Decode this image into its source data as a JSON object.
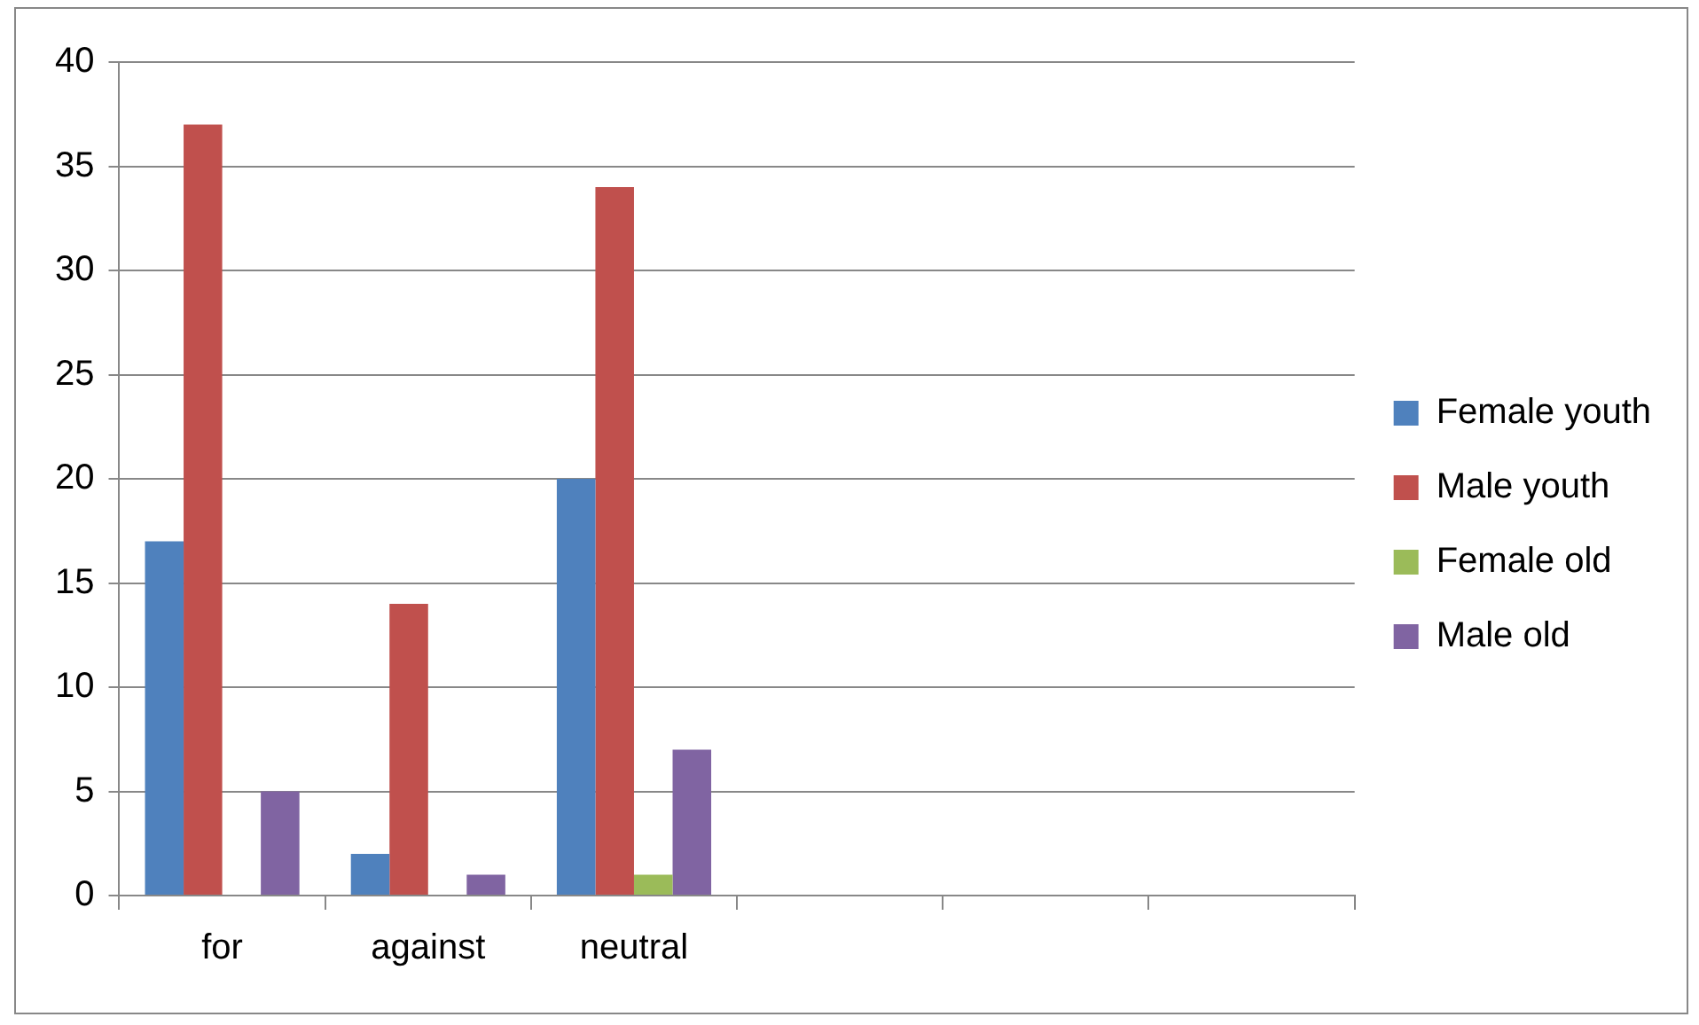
{
  "chart_data": {
    "type": "bar",
    "categories": [
      "for",
      "against",
      "neutral",
      null,
      null,
      null
    ],
    "series": [
      {
        "name": "Female youth",
        "color": "#4f81bd",
        "values": [
          17,
          2,
          20,
          null,
          null,
          null
        ]
      },
      {
        "name": "Male youth",
        "color": "#c0504d",
        "values": [
          37,
          14,
          34,
          null,
          null,
          null
        ]
      },
      {
        "name": "Female old",
        "color": "#9bbb59",
        "values": [
          0,
          0,
          1,
          null,
          null,
          null
        ]
      },
      {
        "name": "Male old",
        "color": "#8064a2",
        "values": [
          5,
          1,
          7,
          null,
          null,
          null
        ]
      }
    ],
    "ylim": [
      0,
      40
    ],
    "yticks": [
      0,
      5,
      10,
      15,
      20,
      25,
      30,
      35,
      40
    ],
    "grid": "y",
    "legend": "right"
  }
}
